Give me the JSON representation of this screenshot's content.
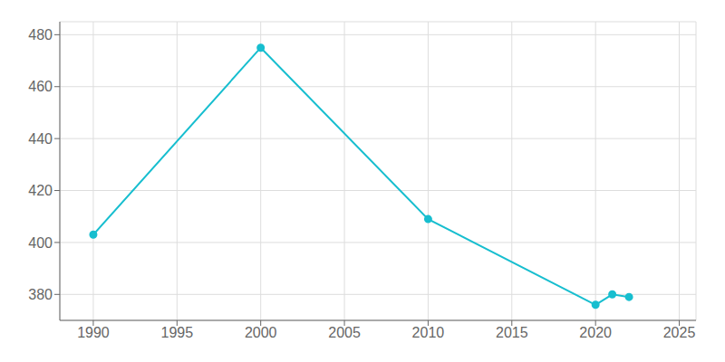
{
  "chart_data": {
    "type": "line",
    "x": [
      1990,
      2000,
      2010,
      2020,
      2021,
      2022
    ],
    "values": [
      403,
      475,
      409,
      376,
      380,
      379
    ],
    "color": "#17becf",
    "marker": "circle",
    "xlim": [
      1988,
      2026
    ],
    "ylim": [
      370,
      485
    ],
    "xticks": [
      1990,
      1995,
      2000,
      2005,
      2010,
      2015,
      2020,
      2025
    ],
    "yticks": [
      380,
      400,
      420,
      440,
      460,
      480
    ],
    "grid": true
  }
}
